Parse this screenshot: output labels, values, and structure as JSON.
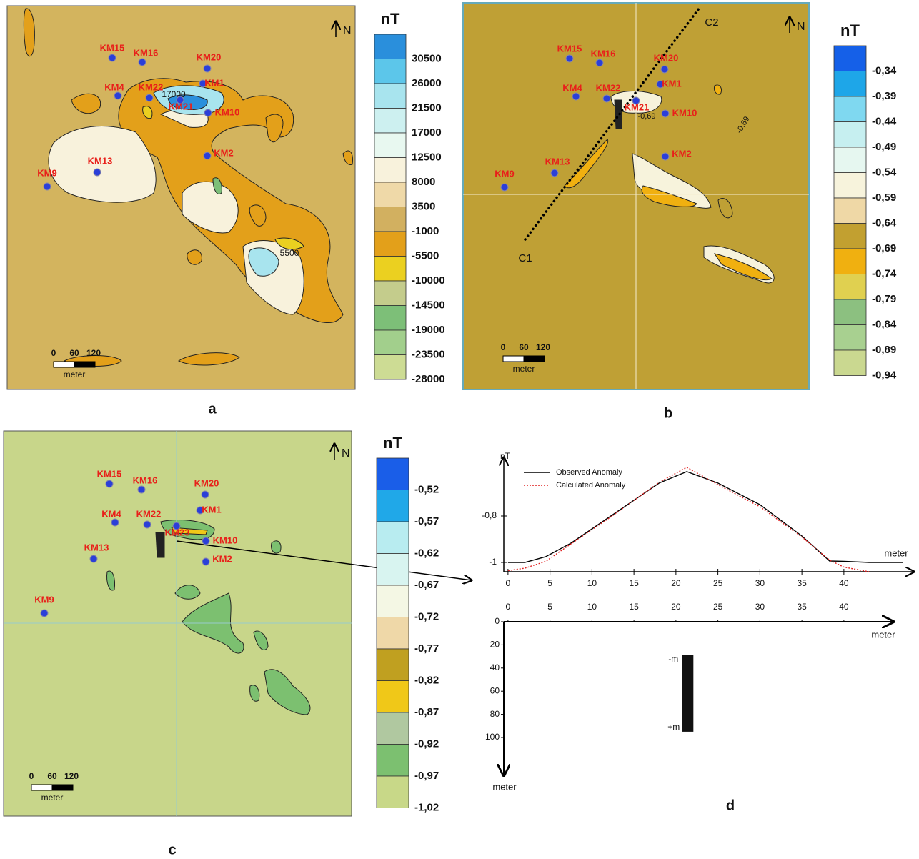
{
  "panels": [
    {
      "letter": "a",
      "unit": "nT",
      "north": "N",
      "scale": {
        "ticks": [
          "0",
          "60",
          "120"
        ],
        "unit": "meter"
      },
      "stations": [
        "KM15",
        "KM16",
        "KM20",
        "KM1",
        "KM4",
        "KM22",
        "KM21",
        "KM10",
        "KM2",
        "KM13",
        "KM9"
      ],
      "contour_labels": [
        "17000",
        "5500"
      ],
      "legend": [
        {
          "label": "30500",
          "color": "#2a8fdc"
        },
        {
          "label": "26000",
          "color": "#5cc6ea"
        },
        {
          "label": "21500",
          "color": "#a8e4ee"
        },
        {
          "label": "17000",
          "color": "#cdf0f0"
        },
        {
          "label": "12500",
          "color": "#e8f8f0"
        },
        {
          "label": "8000",
          "color": "#f8f2dc"
        },
        {
          "label": "3500",
          "color": "#efd9a8"
        },
        {
          "label": "-1000",
          "color": "#d2b060"
        },
        {
          "label": "-5500",
          "color": "#e3a01a"
        },
        {
          "label": "-10000",
          "color": "#ebd020"
        },
        {
          "label": "-14500",
          "color": "#c4cc8c"
        },
        {
          "label": "-19000",
          "color": "#7dbf78"
        },
        {
          "label": "-23500",
          "color": "#a2cf8c"
        },
        {
          "label": "-28000",
          "color": "#cddc94"
        }
      ]
    },
    {
      "letter": "b",
      "unit": "nT",
      "north": "N",
      "scale": {
        "ticks": [
          "0",
          "60",
          "120"
        ],
        "unit": "meter"
      },
      "stations": [
        "KM15",
        "KM16",
        "KM20",
        "KM1",
        "KM4",
        "KM22",
        "KM21",
        "KM10",
        "KM2",
        "KM13",
        "KM9"
      ],
      "contour_labels": [
        "-0,69",
        "-0,69"
      ],
      "profile_ends": [
        "C1",
        "C2"
      ],
      "legend": [
        {
          "label": "-0,34",
          "color": "#1560e8"
        },
        {
          "label": "-0,39",
          "color": "#1ea6e8"
        },
        {
          "label": "-0,44",
          "color": "#7fd8f0"
        },
        {
          "label": "-0,49",
          "color": "#c6eff0"
        },
        {
          "label": "-0,54",
          "color": "#e6f7f0"
        },
        {
          "label": "-0,59",
          "color": "#f7f3dc"
        },
        {
          "label": "-0,64",
          "color": "#efd8a6"
        },
        {
          "label": "-0,69",
          "color": "#c2a030"
        },
        {
          "label": "-0,74",
          "color": "#f0b010"
        },
        {
          "label": "-0,79",
          "color": "#e0d050"
        },
        {
          "label": "-0,84",
          "color": "#8cc080"
        },
        {
          "label": "-0,89",
          "color": "#a8d090"
        },
        {
          "label": "-0,94",
          "color": "#cad890"
        }
      ]
    },
    {
      "letter": "c",
      "unit": "nT",
      "north": "N",
      "scale": {
        "ticks": [
          "0",
          "60",
          "120"
        ],
        "unit": "meter"
      },
      "stations": [
        "KM15",
        "KM16",
        "KM20",
        "KM1",
        "KM4",
        "KM22",
        "KM23",
        "KM10",
        "KM2",
        "KM13",
        "KM9"
      ],
      "legend": [
        {
          "label": "-0,52",
          "color": "#1a5ee8"
        },
        {
          "label": "-0,57",
          "color": "#20a8e8"
        },
        {
          "label": "-0,62",
          "color": "#b8ecf0"
        },
        {
          "label": "-0,67",
          "color": "#d8f4f0"
        },
        {
          "label": "-0,72",
          "color": "#f4f7e4"
        },
        {
          "label": "-0,77",
          "color": "#efd8a8"
        },
        {
          "label": "-0,82",
          "color": "#c0a020"
        },
        {
          "label": "-0,87",
          "color": "#f0c818"
        },
        {
          "label": "-0,92",
          "color": "#b0c8a0"
        },
        {
          "label": "-0,97",
          "color": "#7cc070"
        },
        {
          "label": "-1,02",
          "color": "#c8d888"
        }
      ]
    }
  ],
  "chart_data": {
    "type": "line",
    "x_label": "meter",
    "y_label": "nT",
    "x": [
      0,
      2,
      4.5,
      7.5,
      12,
      18,
      21.3,
      25,
      30,
      35,
      38.3,
      40,
      43,
      47
    ],
    "series": [
      {
        "name": "Observed Anomaly",
        "color": "#000000",
        "linestyle": "solid",
        "values": [
          -1,
          -1,
          -0.975,
          -0.917,
          -0.806,
          -0.658,
          -0.609,
          -0.658,
          -0.751,
          -0.886,
          -0.994,
          -0.995,
          -1,
          -1
        ]
      },
      {
        "name": "Calculated Anomaly",
        "color": "#e02020",
        "linestyle": "dotted",
        "values": [
          -1.035,
          -1.025,
          -0.995,
          -0.92,
          -0.81,
          -0.655,
          -0.59,
          -0.665,
          -0.76,
          -0.89,
          -0.99,
          -1.02,
          -1.04,
          null
        ]
      }
    ],
    "xlim": [
      -0.5,
      47.5
    ],
    "ylim": [
      -1.04,
      -0.56
    ],
    "xticks": [
      0,
      5,
      10,
      15,
      20,
      25,
      30,
      35,
      40
    ],
    "yticks": [
      {
        "value": -0.8,
        "label": "-0,8"
      },
      -1
    ]
  },
  "section": {
    "letter": "d",
    "x_label": "meter",
    "y_label": "meter",
    "xticks": [
      0,
      5,
      10,
      15,
      20,
      25,
      30,
      35,
      40
    ],
    "depth_ticks": [
      0,
      20,
      40,
      60,
      80,
      100
    ],
    "body": {
      "x": 21.4,
      "top": 29,
      "bottom": 95,
      "top_label": "-m",
      "bottom_label": "+m"
    }
  }
}
